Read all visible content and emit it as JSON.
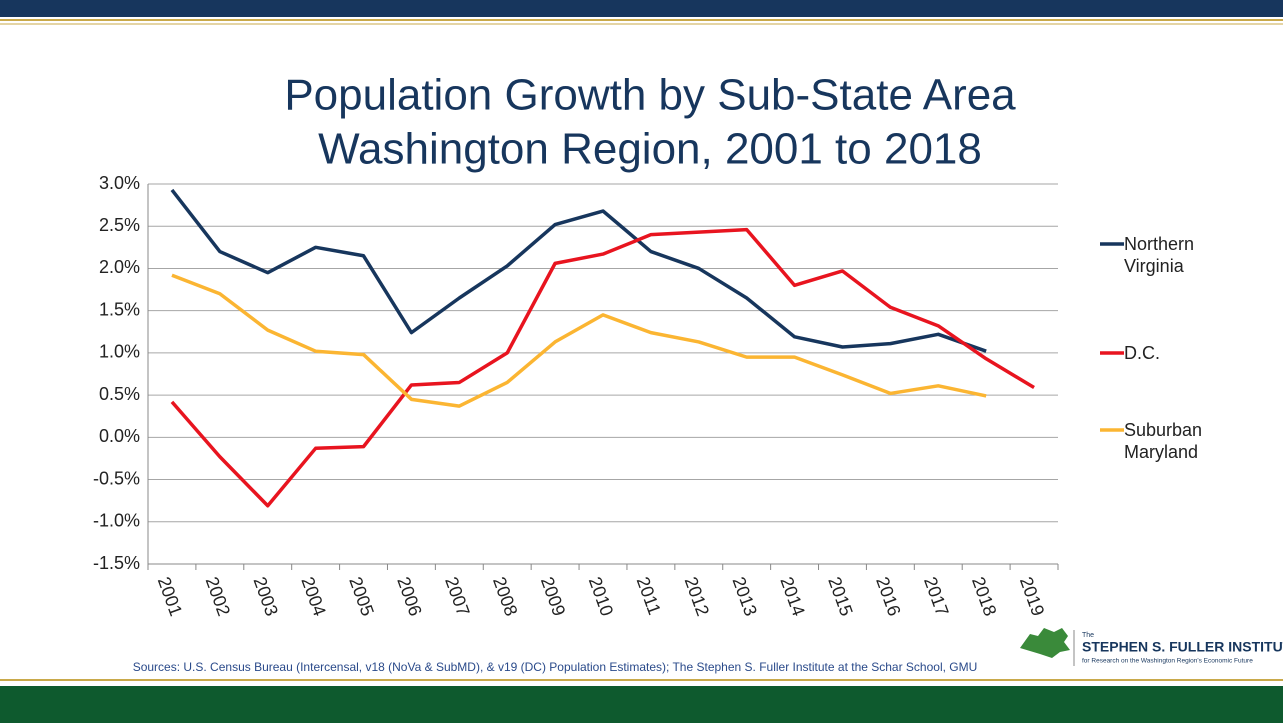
{
  "chart_data": {
    "type": "line",
    "title": "Population Growth by Sub-State Area",
    "subtitle": "Washington Region, 2001 to 2018",
    "categories": [
      "2001",
      "2002",
      "2003",
      "2004",
      "2005",
      "2006",
      "2007",
      "2008",
      "2009",
      "2010",
      "2011",
      "2012",
      "2013",
      "2014",
      "2015",
      "2016",
      "2017",
      "2018",
      "2019"
    ],
    "series": [
      {
        "name": "Northern Virginia",
        "color": "#17365d",
        "values": [
          2.93,
          2.2,
          1.95,
          2.25,
          2.15,
          1.24,
          1.65,
          2.03,
          2.52,
          2.68,
          2.2,
          2.0,
          1.65,
          1.19,
          1.07,
          1.11,
          1.22,
          1.02,
          null
        ]
      },
      {
        "name": "D.C.",
        "color": "#e8141f",
        "values": [
          0.42,
          -0.23,
          -0.81,
          -0.13,
          -0.11,
          0.62,
          0.65,
          1.0,
          2.06,
          2.17,
          2.4,
          2.43,
          2.46,
          1.8,
          1.97,
          1.54,
          1.32,
          0.93,
          0.59
        ]
      },
      {
        "name": "Suburban Maryland",
        "color": "#fbb532",
        "values": [
          1.92,
          1.7,
          1.27,
          1.02,
          0.98,
          0.45,
          0.37,
          0.65,
          1.13,
          1.45,
          1.24,
          1.13,
          0.95,
          0.95,
          0.74,
          0.52,
          0.61,
          0.49,
          null
        ]
      }
    ],
    "ylim": [
      -1.5,
      3
    ],
    "yticks": [
      {
        "value": -1.5,
        "label": "-1.5%"
      },
      {
        "value": -1,
        "label": "-1.0%"
      },
      {
        "value": -0.5,
        "label": "-0.5%"
      },
      {
        "value": 0,
        "label": "0.0%"
      },
      {
        "value": 0.5,
        "label": "0.5%"
      },
      {
        "value": 1,
        "label": "1.0%"
      },
      {
        "value": 1.5,
        "label": "1.5%"
      },
      {
        "value": 2,
        "label": "2.0%"
      },
      {
        "value": 2.5,
        "label": "2.5%"
      },
      {
        "value": 3,
        "label": "3.0%"
      }
    ],
    "grid": true,
    "legend": "right"
  },
  "footer": {
    "source": "Sources: U.S. Census Bureau (Intercensal, v18 (NoVa & SubMD), & v19 (DC) Population Estimates); The Stephen S. Fuller Institute at the Schar School, GMU",
    "logo_small": "The",
    "logo_name": "STEPHEN S. FULLER INSTITUTE",
    "logo_tagline": "for Research on the Washington Region's Economic Future"
  }
}
